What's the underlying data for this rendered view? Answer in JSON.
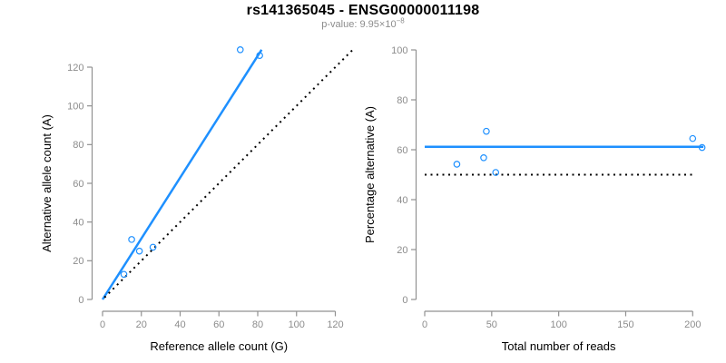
{
  "title": "rs141365045 - ENSG00000011198",
  "subtitle": {
    "prefix": "p-value: ",
    "mantissa": "9.95",
    "times": "×",
    "base": "10",
    "exponent": "−8"
  },
  "colors": {
    "accent_blue": "#1E90FF",
    "axis_gray": "#919191",
    "tick_label_gray": "#8c8c8c",
    "text_black": "#000000",
    "background": "#ffffff"
  },
  "chart_data": [
    {
      "type": "scatter",
      "title": "rs141365045 - ENSG00000011198",
      "subtitle": "p-value: 9.95×10⁻⁸",
      "xlabel": "Reference allele count (G)",
      "ylabel": "Alternative allele count (A)",
      "xlim": [
        0,
        120
      ],
      "ylim": [
        0,
        120
      ],
      "xticks": [
        0,
        20,
        40,
        60,
        80,
        100,
        120
      ],
      "yticks": [
        0,
        20,
        40,
        60,
        80,
        100,
        120
      ],
      "grid": false,
      "legend": "none",
      "points": [
        [
          11,
          13
        ],
        [
          15,
          31
        ],
        [
          19,
          25
        ],
        [
          26,
          27
        ],
        [
          71,
          129
        ],
        [
          81,
          126
        ]
      ],
      "lines": [
        {
          "name": "fit-line",
          "style": "solid",
          "color": "#1E90FF",
          "from": [
            0,
            0
          ],
          "to": [
            82,
            129
          ]
        },
        {
          "name": "identity-line",
          "style": "dotted",
          "color": "#000000",
          "from": [
            1,
            1
          ],
          "to": [
            130,
            130
          ]
        }
      ]
    },
    {
      "type": "scatter",
      "xlabel": "Total number of reads",
      "ylabel": "Percentage alternative (A)",
      "xlim": [
        0,
        200
      ],
      "ylim": [
        0,
        100
      ],
      "xticks": [
        0,
        50,
        100,
        150,
        200
      ],
      "yticks": [
        0,
        20,
        40,
        60,
        80,
        100
      ],
      "grid": false,
      "legend": "none",
      "points": [
        [
          24,
          54.2
        ],
        [
          44,
          56.8
        ],
        [
          46,
          67.4
        ],
        [
          53,
          50.9
        ],
        [
          200,
          64.5
        ],
        [
          207,
          60.9
        ]
      ],
      "lines": [
        {
          "name": "mean-percentage-line",
          "style": "solid",
          "color": "#1E90FF",
          "from": [
            0,
            61.2
          ],
          "to": [
            208,
            61.2
          ]
        },
        {
          "name": "null-50pct-line",
          "style": "dotted",
          "color": "#000000",
          "from": [
            0,
            50
          ],
          "to": [
            202,
            50
          ]
        }
      ]
    }
  ]
}
